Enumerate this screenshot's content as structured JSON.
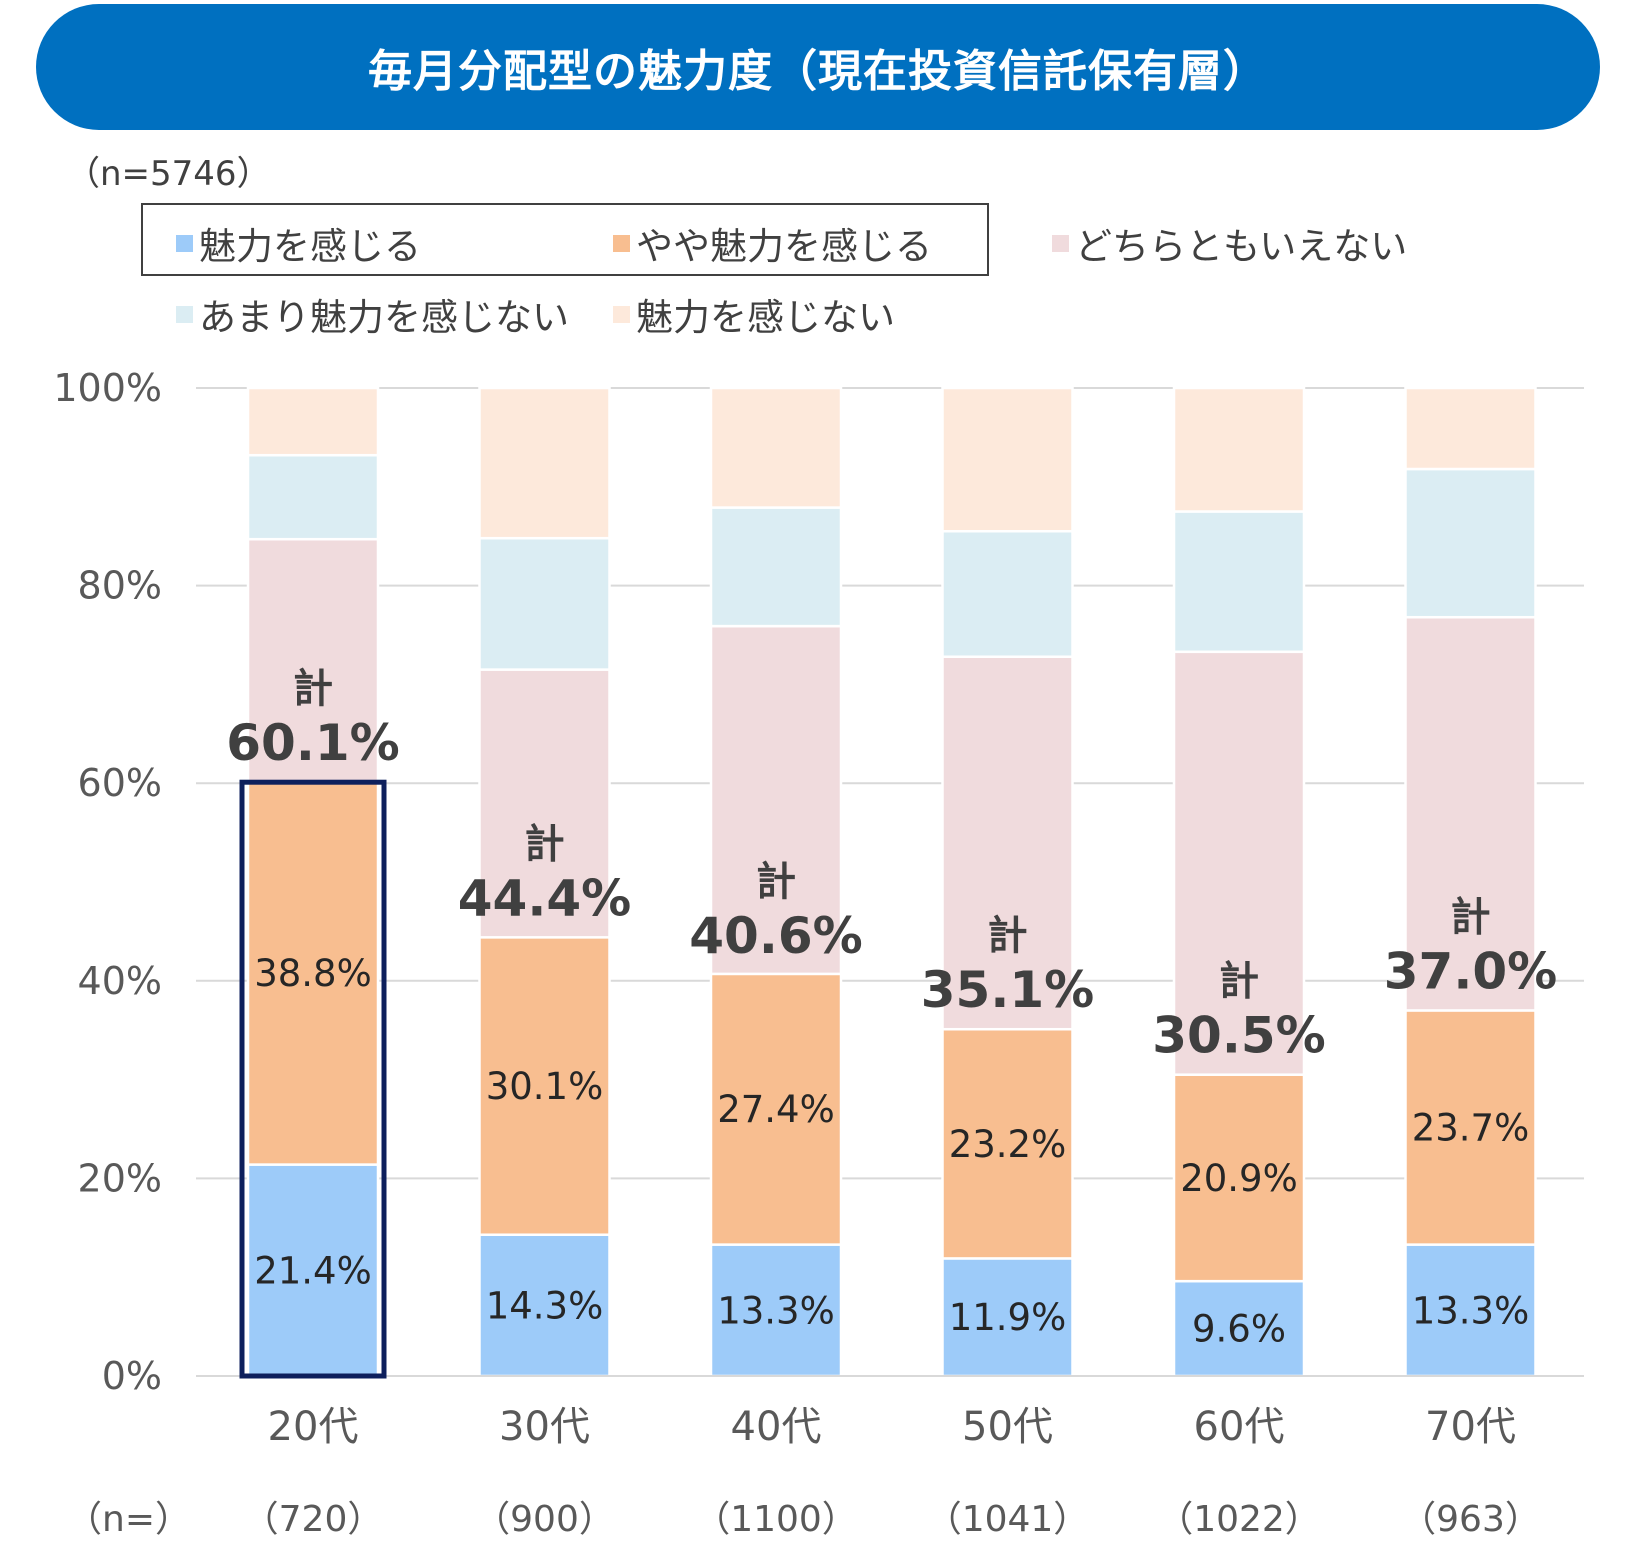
{
  "title": "毎月分配型の魅力度（現在投資信託保有層）",
  "sample_note": "（n=5746）",
  "n_row_label": "（n=）",
  "chart_data": {
    "type": "bar",
    "stacked": true,
    "categories": [
      "20代",
      "30代",
      "40代",
      "50代",
      "60代",
      "70代"
    ],
    "sample_sizes": [
      "（720）",
      "（900）",
      "（1100）",
      "（1041）",
      "（1022）",
      "（963）"
    ],
    "ylim": [
      0,
      100
    ],
    "y_ticks": [
      "0%",
      "20%",
      "40%",
      "60%",
      "80%",
      "100%"
    ],
    "grid": true,
    "legend_placement": "top",
    "series": [
      {
        "name": "魅力を感じる",
        "color": "#9dcbf9",
        "values": [
          21.4,
          14.3,
          13.3,
          11.9,
          9.6,
          13.3
        ],
        "labels": [
          "21.4%",
          "14.3%",
          "13.3%",
          "11.9%",
          "9.6%",
          "13.3%"
        ]
      },
      {
        "name": "やや魅力を感じる",
        "color": "#f8be90",
        "values": [
          38.8,
          30.1,
          27.4,
          23.2,
          20.9,
          23.7
        ],
        "labels": [
          "38.8%",
          "30.1%",
          "27.4%",
          "23.2%",
          "20.9%",
          "23.7%"
        ]
      },
      {
        "name": "どちらともいえない",
        "color": "#f0dbdd",
        "values": [
          24.5,
          27.1,
          35.2,
          37.7,
          42.8,
          39.8
        ]
      },
      {
        "name": "あまり魅力を感じない",
        "color": "#dbedf3",
        "values": [
          8.5,
          13.3,
          12.0,
          12.7,
          14.2,
          15.0
        ]
      },
      {
        "name": "魅力を感じない",
        "color": "#fde9db",
        "values": [
          6.8,
          15.2,
          12.1,
          14.5,
          12.5,
          8.2
        ]
      }
    ],
    "totals": {
      "prefix": "計",
      "values": [
        60.1,
        44.4,
        40.6,
        35.1,
        30.5,
        37.0
      ],
      "labels": [
        "60.1%",
        "44.4%",
        "40.6%",
        "35.1%",
        "30.5%",
        "37.0%"
      ]
    },
    "highlighted_category": "20代",
    "highlight_color": "#0d1f5c"
  }
}
